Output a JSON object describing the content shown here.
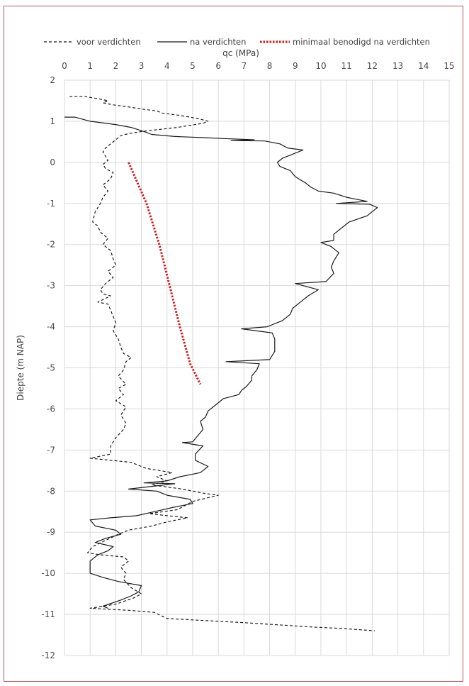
{
  "chart_data": {
    "type": "line",
    "title": "",
    "xlabel": "qc (MPa)",
    "ylabel": "Diepte (m NAP)",
    "xlim": [
      0,
      15
    ],
    "ylim": [
      -12,
      2
    ],
    "x_ticks": [
      0,
      1,
      2,
      3,
      4,
      5,
      6,
      7,
      8,
      9,
      10,
      11,
      12,
      13,
      14,
      15
    ],
    "y_ticks": [
      2,
      1,
      0,
      -1,
      -2,
      -3,
      -4,
      -5,
      -6,
      -7,
      -8,
      -9,
      -10,
      -11,
      -12
    ],
    "x_axis_position": "top",
    "grid": true,
    "legend_position": "top",
    "series": [
      {
        "name": "voor verdichten",
        "style": "dashed",
        "color": "#1a1a1a",
        "points": [
          [
            0.2,
            1.6
          ],
          [
            0.8,
            1.6
          ],
          [
            1.3,
            1.55
          ],
          [
            1.7,
            1.5
          ],
          [
            1.5,
            1.45
          ],
          [
            1.9,
            1.4
          ],
          [
            2.5,
            1.35
          ],
          [
            3.0,
            1.3
          ],
          [
            3.6,
            1.25
          ],
          [
            3.8,
            1.2
          ],
          [
            4.4,
            1.15
          ],
          [
            4.9,
            1.1
          ],
          [
            5.3,
            1.05
          ],
          [
            5.6,
            1.0
          ],
          [
            5.4,
            0.95
          ],
          [
            4.9,
            0.9
          ],
          [
            4.4,
            0.85
          ],
          [
            3.7,
            0.8
          ],
          [
            3.0,
            0.75
          ],
          [
            2.5,
            0.7
          ],
          [
            2.2,
            0.65
          ],
          [
            2.0,
            0.55
          ],
          [
            1.8,
            0.45
          ],
          [
            1.6,
            0.35
          ],
          [
            1.5,
            0.25
          ],
          [
            1.6,
            0.15
          ],
          [
            1.7,
            0.05
          ],
          [
            1.5,
            -0.05
          ],
          [
            1.6,
            -0.15
          ],
          [
            1.9,
            -0.25
          ],
          [
            1.8,
            -0.4
          ],
          [
            1.5,
            -0.55
          ],
          [
            1.7,
            -0.7
          ],
          [
            1.5,
            -0.85
          ],
          [
            1.4,
            -1.0
          ],
          [
            1.2,
            -1.2
          ],
          [
            1.1,
            -1.45
          ],
          [
            1.3,
            -1.55
          ],
          [
            1.4,
            -1.7
          ],
          [
            1.7,
            -1.85
          ],
          [
            1.5,
            -2.0
          ],
          [
            1.8,
            -2.15
          ],
          [
            1.9,
            -2.35
          ],
          [
            2.0,
            -2.5
          ],
          [
            1.7,
            -2.65
          ],
          [
            1.9,
            -2.8
          ],
          [
            1.6,
            -2.95
          ],
          [
            1.4,
            -3.1
          ],
          [
            1.5,
            -3.2
          ],
          [
            1.8,
            -3.25
          ],
          [
            1.3,
            -3.4
          ],
          [
            1.7,
            -3.45
          ],
          [
            1.8,
            -3.6
          ],
          [
            1.9,
            -3.75
          ],
          [
            2.0,
            -3.9
          ],
          [
            1.9,
            -4.1
          ],
          [
            2.1,
            -4.3
          ],
          [
            2.2,
            -4.5
          ],
          [
            2.3,
            -4.65
          ],
          [
            2.6,
            -4.75
          ],
          [
            2.4,
            -4.85
          ],
          [
            2.3,
            -5.05
          ],
          [
            2.1,
            -5.2
          ],
          [
            2.4,
            -5.4
          ],
          [
            2.1,
            -5.5
          ],
          [
            2.3,
            -5.65
          ],
          [
            2.0,
            -5.8
          ],
          [
            2.4,
            -5.95
          ],
          [
            2.2,
            -6.15
          ],
          [
            2.4,
            -6.35
          ],
          [
            2.3,
            -6.5
          ],
          [
            2.0,
            -6.7
          ],
          [
            1.8,
            -6.9
          ],
          [
            1.8,
            -7.1
          ],
          [
            1.0,
            -7.2
          ],
          [
            2.6,
            -7.3
          ],
          [
            3.2,
            -7.45
          ],
          [
            4.2,
            -7.55
          ],
          [
            3.6,
            -7.65
          ],
          [
            4.0,
            -7.75
          ],
          [
            3.4,
            -7.85
          ],
          [
            4.6,
            -7.95
          ],
          [
            5.4,
            -8.05
          ],
          [
            6.0,
            -8.1
          ],
          [
            5.0,
            -8.25
          ],
          [
            4.4,
            -8.45
          ],
          [
            3.3,
            -8.55
          ],
          [
            4.8,
            -8.65
          ],
          [
            4.0,
            -8.75
          ],
          [
            3.4,
            -8.85
          ],
          [
            2.5,
            -8.95
          ],
          [
            2.1,
            -9.05
          ],
          [
            1.6,
            -9.2
          ],
          [
            1.1,
            -9.35
          ],
          [
            0.9,
            -9.5
          ],
          [
            1.4,
            -9.55
          ],
          [
            2.3,
            -9.6
          ],
          [
            2.5,
            -9.7
          ],
          [
            2.2,
            -9.85
          ],
          [
            2.4,
            -10.0
          ],
          [
            2.3,
            -10.15
          ],
          [
            2.6,
            -10.35
          ],
          [
            3.0,
            -10.5
          ],
          [
            2.7,
            -10.6
          ],
          [
            2.0,
            -10.75
          ],
          [
            1.0,
            -10.85
          ],
          [
            2.5,
            -10.9
          ],
          [
            3.5,
            -10.95
          ],
          [
            4.0,
            -11.1
          ],
          [
            7.0,
            -11.2
          ],
          [
            9.5,
            -11.3
          ],
          [
            11.0,
            -11.35
          ],
          [
            12.1,
            -11.4
          ]
        ]
      },
      {
        "name": "na verdichten",
        "style": "solid",
        "color": "#1a1a1a",
        "points": [
          [
            0.0,
            1.1
          ],
          [
            0.4,
            1.1
          ],
          [
            1.0,
            1.0
          ],
          [
            2.0,
            0.92
          ],
          [
            2.6,
            0.85
          ],
          [
            3.1,
            0.75
          ],
          [
            3.4,
            0.68
          ],
          [
            4.3,
            0.63
          ],
          [
            5.5,
            0.6
          ],
          [
            6.2,
            0.58
          ],
          [
            7.4,
            0.55
          ],
          [
            6.5,
            0.53
          ],
          [
            7.8,
            0.52
          ],
          [
            8.4,
            0.45
          ],
          [
            8.7,
            0.35
          ],
          [
            9.3,
            0.3
          ],
          [
            8.9,
            0.2
          ],
          [
            8.5,
            0.1
          ],
          [
            8.3,
            0.0
          ],
          [
            8.4,
            -0.1
          ],
          [
            8.8,
            -0.2
          ],
          [
            9.0,
            -0.35
          ],
          [
            9.4,
            -0.5
          ],
          [
            9.6,
            -0.6
          ],
          [
            9.9,
            -0.7
          ],
          [
            10.5,
            -0.75
          ],
          [
            11.0,
            -0.85
          ],
          [
            11.8,
            -0.95
          ],
          [
            10.6,
            -1.0
          ],
          [
            11.9,
            -1.02
          ],
          [
            12.2,
            -1.1
          ],
          [
            11.8,
            -1.3
          ],
          [
            11.1,
            -1.45
          ],
          [
            10.8,
            -1.6
          ],
          [
            10.5,
            -1.75
          ],
          [
            10.5,
            -1.9
          ],
          [
            10.0,
            -1.95
          ],
          [
            10.4,
            -2.05
          ],
          [
            10.7,
            -2.2
          ],
          [
            10.5,
            -2.4
          ],
          [
            10.4,
            -2.55
          ],
          [
            10.5,
            -2.7
          ],
          [
            10.2,
            -2.9
          ],
          [
            9.0,
            -2.95
          ],
          [
            9.9,
            -3.1
          ],
          [
            9.5,
            -3.25
          ],
          [
            9.2,
            -3.4
          ],
          [
            8.9,
            -3.55
          ],
          [
            8.8,
            -3.7
          ],
          [
            8.5,
            -3.85
          ],
          [
            7.9,
            -4.0
          ],
          [
            6.9,
            -4.05
          ],
          [
            8.1,
            -4.15
          ],
          [
            8.2,
            -4.3
          ],
          [
            8.2,
            -4.6
          ],
          [
            8.0,
            -4.8
          ],
          [
            6.3,
            -4.85
          ],
          [
            7.6,
            -4.9
          ],
          [
            7.5,
            -5.05
          ],
          [
            7.3,
            -5.2
          ],
          [
            7.3,
            -5.3
          ],
          [
            7.1,
            -5.45
          ],
          [
            6.9,
            -5.55
          ],
          [
            6.8,
            -5.65
          ],
          [
            6.2,
            -5.75
          ],
          [
            5.9,
            -5.9
          ],
          [
            5.6,
            -6.05
          ],
          [
            5.5,
            -6.2
          ],
          [
            5.3,
            -6.3
          ],
          [
            5.4,
            -6.5
          ],
          [
            5.2,
            -6.65
          ],
          [
            5.0,
            -6.8
          ],
          [
            4.6,
            -6.82
          ],
          [
            5.4,
            -6.9
          ],
          [
            5.1,
            -7.1
          ],
          [
            5.1,
            -7.25
          ],
          [
            5.6,
            -7.4
          ],
          [
            5.3,
            -7.55
          ],
          [
            4.5,
            -7.65
          ],
          [
            4.0,
            -7.75
          ],
          [
            3.1,
            -7.8
          ],
          [
            4.3,
            -7.82
          ],
          [
            3.2,
            -7.9
          ],
          [
            2.5,
            -7.95
          ],
          [
            3.6,
            -8.0
          ],
          [
            4.0,
            -8.1
          ],
          [
            4.9,
            -8.2
          ],
          [
            5.0,
            -8.3
          ],
          [
            4.2,
            -8.4
          ],
          [
            3.5,
            -8.5
          ],
          [
            2.8,
            -8.6
          ],
          [
            1.8,
            -8.65
          ],
          [
            1.0,
            -8.7
          ],
          [
            1.2,
            -8.85
          ],
          [
            2.0,
            -8.95
          ],
          [
            2.2,
            -9.05
          ],
          [
            1.6,
            -9.15
          ],
          [
            1.2,
            -9.25
          ],
          [
            1.9,
            -9.35
          ],
          [
            1.7,
            -9.45
          ],
          [
            1.3,
            -9.55
          ],
          [
            1.0,
            -9.7
          ],
          [
            1.0,
            -9.85
          ],
          [
            1.0,
            -10.0
          ],
          [
            1.5,
            -10.1
          ],
          [
            2.1,
            -10.2
          ],
          [
            3.0,
            -10.3
          ],
          [
            2.9,
            -10.45
          ],
          [
            2.6,
            -10.55
          ],
          [
            2.2,
            -10.65
          ],
          [
            1.5,
            -10.8
          ],
          [
            1.7,
            -10.85
          ]
        ]
      },
      {
        "name": "minimaal benodigd na verdichten",
        "style": "dotted",
        "color": "#cc2222",
        "points": [
          [
            2.5,
            0.0
          ],
          [
            3.2,
            -1.0
          ],
          [
            3.7,
            -2.0
          ],
          [
            4.1,
            -3.0
          ],
          [
            4.5,
            -4.0
          ],
          [
            4.9,
            -4.9
          ],
          [
            5.3,
            -5.4
          ]
        ]
      }
    ]
  }
}
